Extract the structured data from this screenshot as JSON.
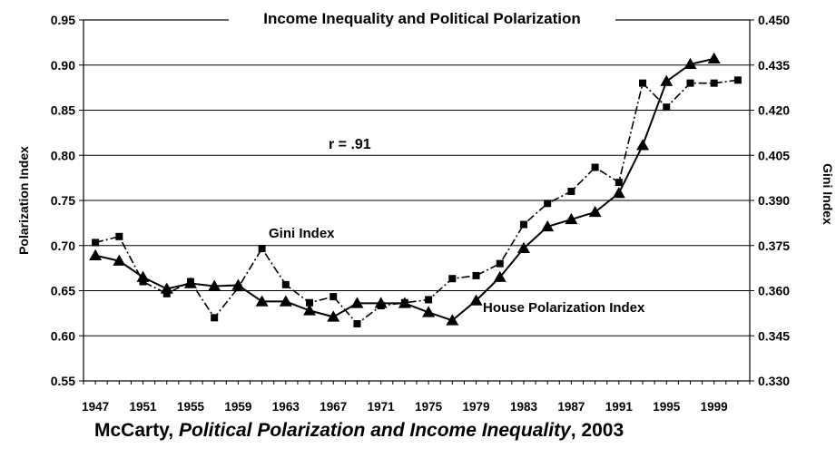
{
  "caption": {
    "author": "McCarty,",
    "work": "Political Polarization and Income Inequality",
    "year": ", 2003"
  },
  "chart_data": {
    "type": "line",
    "title": "Income Inequality and Political Polarization",
    "ylabel_left": "Polarization Index",
    "ylabel_right": "Gini Index",
    "ylim_left": [
      0.55,
      0.95
    ],
    "ylim_right": [
      0.33,
      0.45
    ],
    "yticks_left": [
      "0.95",
      "0.90",
      "0.85",
      "0.80",
      "0.75",
      "0.70",
      "0.65",
      "0.60",
      "0.55"
    ],
    "yticks_right": [
      "0.450",
      "0.435",
      "0.420",
      "0.405",
      "0.390",
      "0.375",
      "0.360",
      "0.345",
      "0.330"
    ],
    "xlim": [
      1946,
      2002
    ],
    "xticks": [
      "1947",
      "1951",
      "1955",
      "1959",
      "1963",
      "1967",
      "1971",
      "1975",
      "1979",
      "1983",
      "1987",
      "1991",
      "1995",
      "1999"
    ],
    "grid": true,
    "annotation": "r = .91",
    "series": [
      {
        "name": "House Polarization Index",
        "axis": "left",
        "marker": "triangle",
        "style": "solid",
        "x": [
          1947,
          1949,
          1951,
          1953,
          1955,
          1957,
          1959,
          1961,
          1963,
          1965,
          1967,
          1969,
          1971,
          1973,
          1975,
          1977,
          1979,
          1981,
          1983,
          1985,
          1987,
          1989,
          1991,
          1993,
          1995,
          1997,
          1999
        ],
        "values": [
          0.689,
          0.683,
          0.665,
          0.652,
          0.658,
          0.655,
          0.656,
          0.638,
          0.638,
          0.628,
          0.621,
          0.636,
          0.636,
          0.636,
          0.626,
          0.617,
          0.639,
          0.665,
          0.697,
          0.721,
          0.729,
          0.737,
          0.758,
          0.811,
          0.882,
          0.901,
          0.907
        ]
      },
      {
        "name": "Gini Index",
        "axis": "right",
        "marker": "square",
        "style": "dashed",
        "x": [
          1947,
          1949,
          1951,
          1953,
          1955,
          1957,
          1959,
          1961,
          1963,
          1965,
          1967,
          1969,
          1971,
          1973,
          1975,
          1977,
          1979,
          1981,
          1983,
          1985,
          1987,
          1989,
          1991,
          1993,
          1995,
          1997,
          1999,
          2001
        ],
        "values": [
          0.376,
          0.378,
          0.363,
          0.359,
          0.363,
          0.351,
          0.361,
          0.374,
          0.362,
          0.356,
          0.358,
          0.349,
          0.355,
          0.356,
          0.357,
          0.364,
          0.365,
          0.369,
          0.382,
          0.389,
          0.393,
          0.401,
          0.396,
          0.429,
          0.421,
          0.429,
          0.429,
          0.43
        ]
      }
    ],
    "labels": {
      "gini_series_label": "Gini Index",
      "polarization_series_label": "House Polarization Index"
    }
  }
}
